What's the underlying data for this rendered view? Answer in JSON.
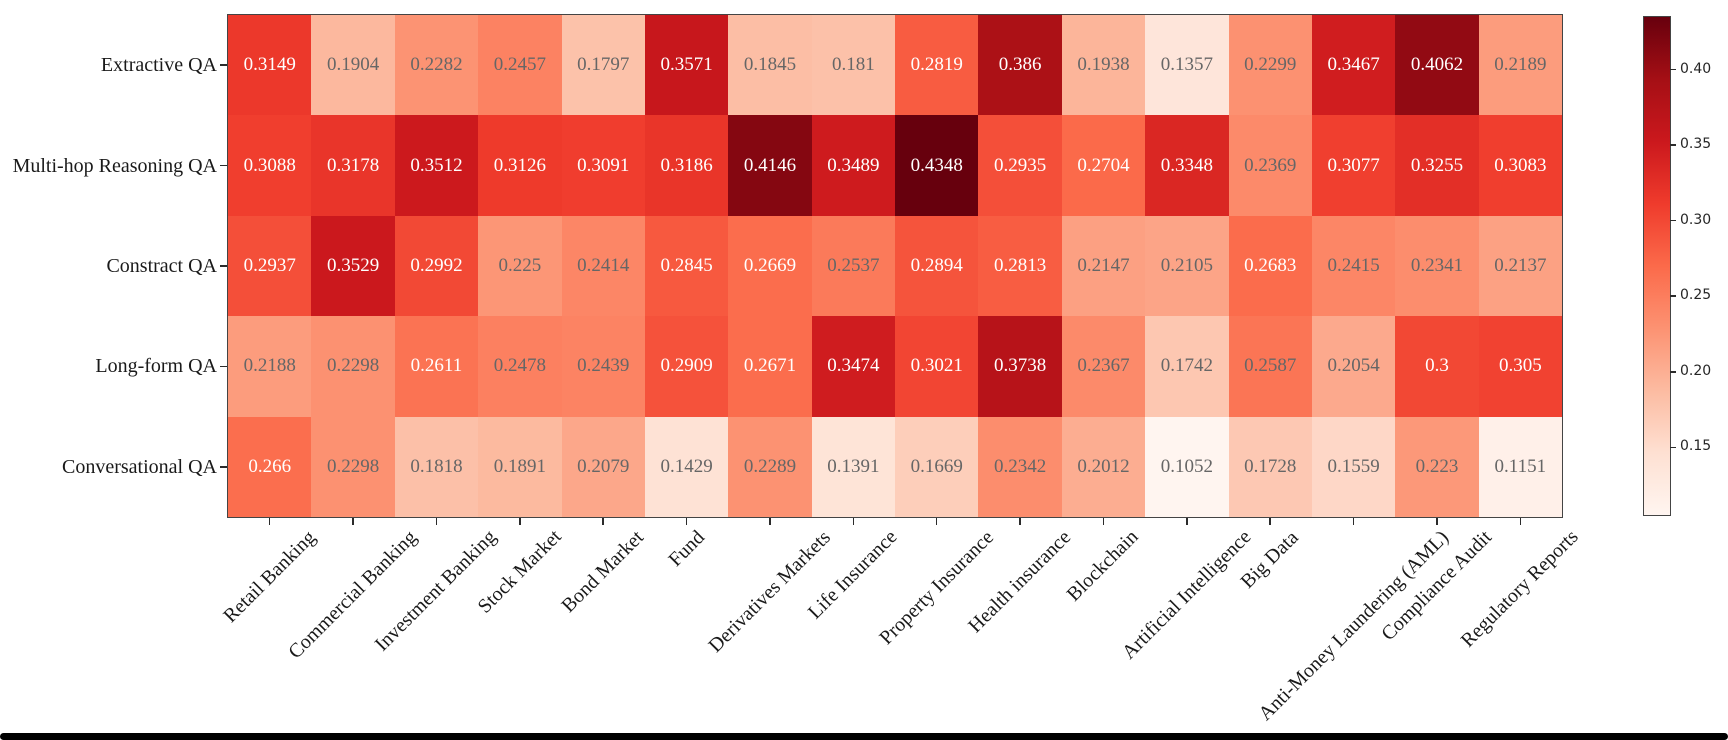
{
  "figure": {
    "background": "#ffffff",
    "bottom_bar_color": "#000000",
    "spine_color": "#444444",
    "tick_color": "#2b2b2b"
  },
  "chart_data": {
    "type": "heatmap",
    "title": "",
    "xlabel": "",
    "ylabel": "",
    "colormap": "Reds",
    "colormap_stops": [
      "#fff5f0",
      "#fee0d2",
      "#fcbba1",
      "#fc9272",
      "#fb6a4a",
      "#ef3b2c",
      "#cb181d",
      "#a50f15",
      "#67000d"
    ],
    "vmin": 0.1052,
    "vmax": 0.4348,
    "annotation_text_light": "#ffffff",
    "annotation_text_dark": "#666666",
    "annotation_white_threshold": 0.26,
    "row_labels": [
      "Extractive QA",
      "Multi-hop Reasoning QA",
      "Constract QA",
      "Long-form QA",
      "Conversational QA"
    ],
    "col_labels": [
      "Retail Banking",
      "Commercial Banking",
      "Investment Banking",
      "Stock Market",
      "Bond Market",
      "Fund",
      "Derivatives Markets",
      "Life Insurance",
      "Property Insurance",
      "Health insurance",
      "Blockchain",
      "Artificial Intelligence",
      "Big Data",
      "Anti-Money Laundering (AML)",
      "Compliance Audit",
      "Regulatory Reports"
    ],
    "values": [
      [
        "0.3149",
        "0.1904",
        "0.2282",
        "0.2457",
        "0.1797",
        "0.3571",
        "0.1845",
        "0.181",
        "0.2819",
        "0.386",
        "0.1938",
        "0.1357",
        "0.2299",
        "0.3467",
        "0.4062",
        "0.2189"
      ],
      [
        "0.3088",
        "0.3178",
        "0.3512",
        "0.3126",
        "0.3091",
        "0.3186",
        "0.4146",
        "0.3489",
        "0.4348",
        "0.2935",
        "0.2704",
        "0.3348",
        "0.2369",
        "0.3077",
        "0.3255",
        "0.3083"
      ],
      [
        "0.2937",
        "0.3529",
        "0.2992",
        "0.225",
        "0.2414",
        "0.2845",
        "0.2669",
        "0.2537",
        "0.2894",
        "0.2813",
        "0.2147",
        "0.2105",
        "0.2683",
        "0.2415",
        "0.2341",
        "0.2137"
      ],
      [
        "0.2188",
        "0.2298",
        "0.2611",
        "0.2478",
        "0.2439",
        "0.2909",
        "0.2671",
        "0.3474",
        "0.3021",
        "0.3738",
        "0.2367",
        "0.1742",
        "0.2587",
        "0.2054",
        "0.3",
        "0.305"
      ],
      [
        "0.266",
        "0.2298",
        "0.1818",
        "0.1891",
        "0.2079",
        "0.1429",
        "0.2289",
        "0.1391",
        "0.1669",
        "0.2342",
        "0.2012",
        "0.1052",
        "0.1728",
        "0.1559",
        "0.223",
        "0.1151"
      ]
    ],
    "legend_position": "right-colorbar",
    "grid": false,
    "colorbar": {
      "ticks": [
        "0.40",
        "0.35",
        "0.30",
        "0.25",
        "0.20",
        "0.15"
      ]
    }
  }
}
